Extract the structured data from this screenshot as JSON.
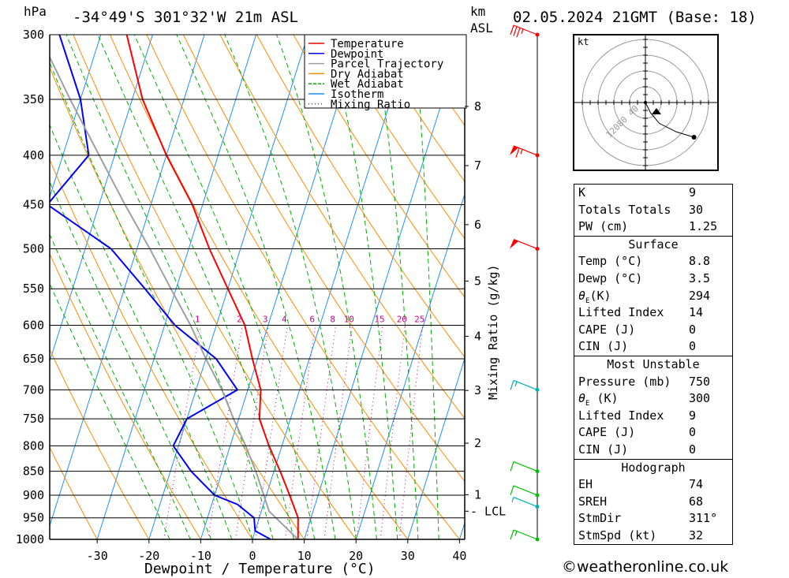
{
  "header": {
    "hpa_label": "hPa",
    "location": "-34°49'S  301°32'W  21m  ASL",
    "km_label": "km",
    "asl_label": "ASL",
    "datetime": "02.05.2024  21GMT  (Base: 18)"
  },
  "chart_data": {
    "type": "line",
    "subtype": "skew-T log-P sounding",
    "xlabel": "Dewpoint / Temperature (°C)",
    "ylabel": "hPa",
    "right_axis_label": "Mixing Ratio (g/kg)",
    "xlim": [
      -40,
      40
    ],
    "ylim": [
      1000,
      300
    ],
    "x_ticks": [
      -30,
      -20,
      -10,
      0,
      10,
      20,
      30,
      40
    ],
    "pressure_levels": [
      300,
      350,
      400,
      450,
      500,
      550,
      600,
      650,
      700,
      750,
      800,
      850,
      900,
      950,
      1000
    ],
    "km_ticks": [
      {
        "km": "1",
        "p": 899
      },
      {
        "km": "2",
        "p": 795
      },
      {
        "km": "3",
        "p": 701
      },
      {
        "km": "4",
        "p": 616
      },
      {
        "km": "5",
        "p": 540
      },
      {
        "km": "6",
        "p": 472
      },
      {
        "km": "7",
        "p": 410
      },
      {
        "km": "8",
        "p": 356
      }
    ],
    "lcl": {
      "label": "LCL",
      "p": 935
    },
    "mixing_ratio_labels": [
      "1",
      "2",
      "3",
      "4",
      "6",
      "8",
      "10",
      "15",
      "20",
      "25"
    ],
    "mixing_ratios": [
      1,
      2,
      3,
      4,
      6,
      8,
      10,
      15,
      20,
      25
    ],
    "legend": [
      {
        "name": "Temperature",
        "color": "#ff0000",
        "style": "solid"
      },
      {
        "name": "Dewpoint",
        "color": "#0000ff",
        "style": "solid"
      },
      {
        "name": "Parcel Trajectory",
        "color": "#a0a0a0",
        "style": "solid"
      },
      {
        "name": "Dry Adiabat",
        "color": "#ff8c00",
        "style": "solid"
      },
      {
        "name": "Wet Adiabat",
        "color": "#00b000",
        "style": "dashed"
      },
      {
        "name": "Isotherm",
        "color": "#1e90ff",
        "style": "solid"
      },
      {
        "name": "Mixing Ratio",
        "color": "#cc0088",
        "style": "dotted"
      }
    ],
    "series": [
      {
        "name": "Temperature",
        "color": "#ff0000",
        "points": [
          [
            1000,
            8.8
          ],
          [
            950,
            7.5
          ],
          [
            900,
            4.5
          ],
          [
            850,
            1.2
          ],
          [
            800,
            -2.5
          ],
          [
            750,
            -6
          ],
          [
            700,
            -7.5
          ],
          [
            650,
            -11
          ],
          [
            600,
            -14.5
          ],
          [
            550,
            -20
          ],
          [
            500,
            -26
          ],
          [
            450,
            -32
          ],
          [
            400,
            -40
          ],
          [
            350,
            -48
          ],
          [
            300,
            -55
          ]
        ]
      },
      {
        "name": "Dewpoint",
        "color": "#0000ff",
        "points": [
          [
            1000,
            3.5
          ],
          [
            980,
            0
          ],
          [
            950,
            -1
          ],
          [
            920,
            -5
          ],
          [
            900,
            -10
          ],
          [
            850,
            -16
          ],
          [
            800,
            -21
          ],
          [
            750,
            -20
          ],
          [
            700,
            -12
          ],
          [
            650,
            -18
          ],
          [
            600,
            -28
          ],
          [
            550,
            -36
          ],
          [
            500,
            -45
          ],
          [
            450,
            -60
          ],
          [
            400,
            -55
          ],
          [
            350,
            -60
          ],
          [
            300,
            -68
          ]
        ]
      },
      {
        "name": "Parcel Trajectory",
        "color": "#a0a0a0",
        "points": [
          [
            1000,
            8.8
          ],
          [
            935,
            1.5
          ],
          [
            900,
            -0.5
          ],
          [
            850,
            -3.5
          ],
          [
            800,
            -7
          ],
          [
            750,
            -11
          ],
          [
            700,
            -15
          ],
          [
            650,
            -20
          ],
          [
            600,
            -25
          ],
          [
            550,
            -31
          ],
          [
            500,
            -37.5
          ],
          [
            450,
            -45
          ],
          [
            400,
            -53
          ],
          [
            350,
            -62
          ],
          [
            300,
            -72
          ]
        ]
      }
    ],
    "wind_barbs": [
      {
        "p": 300,
        "color": "#ff0000",
        "knots": 35
      },
      {
        "p": 400,
        "color": "#ff0000",
        "knots": 65
      },
      {
        "p": 500,
        "color": "#ff0000",
        "knots": 50
      },
      {
        "p": 700,
        "color": "#00b0b0",
        "knots": 15
      },
      {
        "p": 850,
        "color": "#00c000",
        "knots": 10
      },
      {
        "p": 900,
        "color": "#00c000",
        "knots": 10
      },
      {
        "p": 925,
        "color": "#00b0b0",
        "knots": 5
      },
      {
        "p": 1000,
        "color": "#00c000",
        "knots": 15
      }
    ],
    "hodograph": {
      "unit_label": "kt",
      "ring_labels": [
        "40",
        "80",
        "120"
      ],
      "points": [
        [
          0,
          0
        ],
        [
          3,
          -6
        ],
        [
          8,
          -12
        ],
        [
          18,
          -17
        ],
        [
          28,
          -20
        ]
      ],
      "storm_motion": {
        "dir": 311,
        "speed": 32
      }
    }
  },
  "indices": {
    "rows": [
      {
        "label": "K",
        "value": "9"
      },
      {
        "label": "Totals Totals",
        "value": "30"
      },
      {
        "label": "PW (cm)",
        "value": "1.25"
      }
    ]
  },
  "surface": {
    "title": "Surface",
    "temp_label": "Temp (°C)",
    "temp": "8.8",
    "dewp_label": "Dewp (°C)",
    "dewp": "3.5",
    "theta_label": "(K)",
    "theta": "294",
    "li_label": "Lifted Index",
    "li": "14",
    "cape_label": "CAPE (J)",
    "cape": "0",
    "cin_label": "CIN (J)",
    "cin": "0"
  },
  "unstable": {
    "title": "Most Unstable",
    "pressure_label": "Pressure (mb)",
    "pressure": "750",
    "theta_label": "(K)",
    "theta": "300",
    "li_label": "Lifted Index",
    "li": "9",
    "cape_label": "CAPE (J)",
    "cape": "0",
    "cin_label": "CIN (J)",
    "cin": "0"
  },
  "hodo_table": {
    "title": "Hodograph",
    "eh_label": "EH",
    "eh": "74",
    "sreh_label": "SREH",
    "sreh": "68",
    "stmdir_label": "StmDir",
    "stmdir": "311°",
    "stmspd_label": "StmSpd (kt)",
    "stmspd": "32"
  },
  "credit": "©weatheronline.co.uk"
}
